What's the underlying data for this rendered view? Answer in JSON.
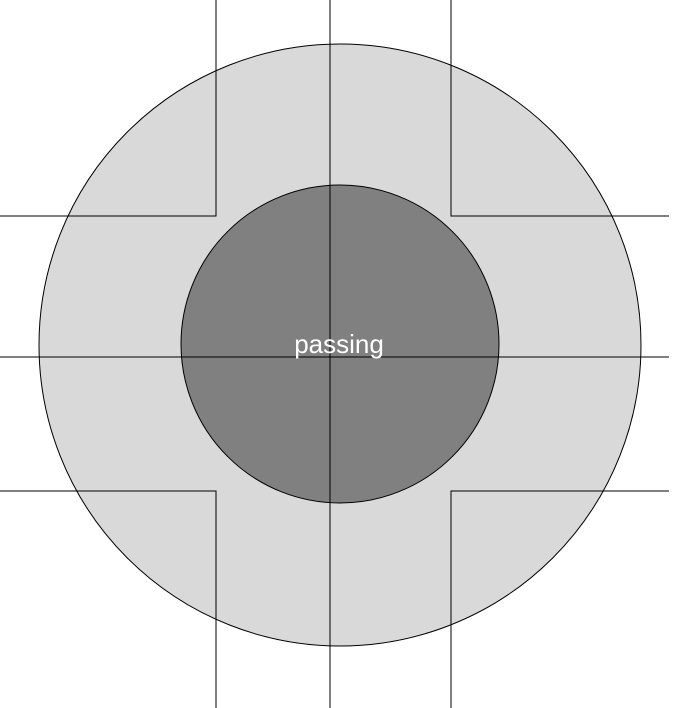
{
  "diagram": {
    "center_label": "passing",
    "colors": {
      "background": "#ffffff",
      "outer_fill": "#d9d9d9",
      "inner_fill": "#808080",
      "stroke": "#000000",
      "label": "#ffffff"
    }
  }
}
